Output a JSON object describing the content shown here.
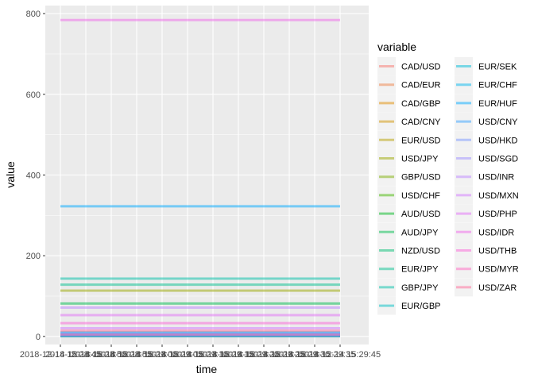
{
  "chart_data": {
    "type": "line",
    "xlabel": "time",
    "ylabel": "value",
    "legend_title": "variable",
    "legend_position": "right",
    "grid": true,
    "ylim": [
      -20,
      820
    ],
    "y_ticks": [
      0,
      200,
      400,
      600,
      800
    ],
    "x_tick_labels": [
      "2018-12-14 15:28:45",
      "2018-12-14 15:28:50",
      "2018-12-14 15:28:55",
      "2018-12-14 15:29:00",
      "2018-12-14 15:29:05",
      "2018-12-14 15:29:10",
      "2018-12-14 15:29:15",
      "2018-12-14 15:29:20",
      "2018-12-14 15:29:25",
      "2018-12-14 15:29:30",
      "2018-12-14 15:29:35",
      "2018-12-14 15:29:45"
    ],
    "series": [
      {
        "name": "CAD/USD",
        "color": "#F8766D",
        "value": 0.75
      },
      {
        "name": "CAD/EUR",
        "color": "#EE8043",
        "value": 0.66
      },
      {
        "name": "CAD/GBP",
        "color": "#E08B00",
        "value": 0.59
      },
      {
        "name": "CAD/CNY",
        "color": "#CF9400",
        "value": 5.15
      },
      {
        "name": "EUR/USD",
        "color": "#B79F00",
        "value": 1.13
      },
      {
        "name": "USD/JPY",
        "color": "#9CA700",
        "value": 113.5
      },
      {
        "name": "GBP/USD",
        "color": "#7CAE00",
        "value": 1.26
      },
      {
        "name": "USD/CHF",
        "color": "#44B500",
        "value": 0.99
      },
      {
        "name": "AUD/USD",
        "color": "#00B81F",
        "value": 0.72
      },
      {
        "name": "AUD/JPY",
        "color": "#00BB4E",
        "value": 81.5
      },
      {
        "name": "NZD/USD",
        "color": "#00BE71",
        "value": 0.68
      },
      {
        "name": "EUR/JPY",
        "color": "#00BF8E",
        "value": 128.3
      },
      {
        "name": "GBP/JPY",
        "color": "#00C0A8",
        "value": 143.3
      },
      {
        "name": "EUR/GBP",
        "color": "#00BFC4",
        "value": 0.9
      },
      {
        "name": "EUR/SEK",
        "color": "#00BCD8",
        "value": 10.3
      },
      {
        "name": "EUR/CHF",
        "color": "#00B5EE",
        "value": 1.12
      },
      {
        "name": "EUR/HUF",
        "color": "#00A9FF",
        "value": 322.5
      },
      {
        "name": "USD/CNY",
        "color": "#35A2FF",
        "value": 6.89
      },
      {
        "name": "USD/HKD",
        "color": "#7997FF",
        "value": 7.82
      },
      {
        "name": "USD/SGD",
        "color": "#9E8FFF",
        "value": 1.37
      },
      {
        "name": "USD/INR",
        "color": "#BB83FF",
        "value": 71.5
      },
      {
        "name": "USD/MXN",
        "color": "#D177FF",
        "value": 20.3
      },
      {
        "name": "USD/PHP",
        "color": "#E26EF7",
        "value": 52.9
      },
      {
        "name": "USD/IDR",
        "color": "#F066EA",
        "value": 784.0
      },
      {
        "name": "USD/THB",
        "color": "#FB61D7",
        "value": 32.8
      },
      {
        "name": "USD/MYR",
        "color": "#FF63BF",
        "value": 4.18
      },
      {
        "name": "USD/ZAR",
        "color": "#FF6A98",
        "value": 14.2
      }
    ]
  }
}
